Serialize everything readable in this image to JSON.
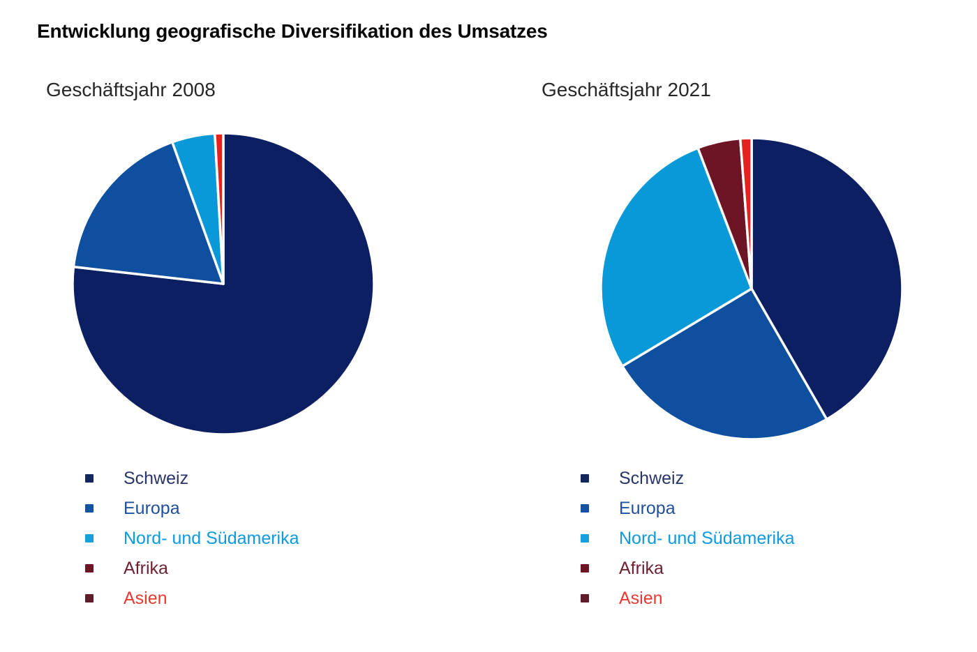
{
  "page_title": "Entwicklung geografische Diversifikation des Umsatzes",
  "chart_data": [
    {
      "type": "pie",
      "title": "Geschäftsjahr 2008",
      "labels": [
        "Schweiz",
        "Europa",
        "Nord- und Südamerika",
        "Afrika",
        "Asien"
      ],
      "values": [
        76.8,
        17.7,
        4.6,
        0,
        0.9
      ],
      "unit": "percent-share-estimated",
      "colors": [
        "#0b1f62",
        "#0f4fa0",
        "#0999d8",
        "#6d1425",
        "#e2241e"
      ],
      "start_angle_deg": 0,
      "direction": "clockwise",
      "slice_gap_color": "#ffffff",
      "legend_position": "bottom"
    },
    {
      "type": "pie",
      "title": "Geschäftsjahr 2021",
      "labels": [
        "Schweiz",
        "Europa",
        "Nord- und Südamerika",
        "Afrika",
        "Asien"
      ],
      "values": [
        41.7,
        24.7,
        27.8,
        4.6,
        1.2
      ],
      "unit": "percent-share-estimated",
      "colors": [
        "#0b1f62",
        "#0f4fa0",
        "#0999d8",
        "#6d1425",
        "#e2241e"
      ],
      "start_angle_deg": 0,
      "direction": "clockwise",
      "slice_gap_color": "#ffffff",
      "legend_position": "bottom"
    }
  ],
  "legend": {
    "items": [
      {
        "label": "Schweiz",
        "marker_color": "#14265e",
        "text_color": "#28356a"
      },
      {
        "label": "Europa",
        "marker_color": "#1553a1",
        "text_color": "#1d509e"
      },
      {
        "label": "Nord- und Südamerika",
        "marker_color": "#18a0dc",
        "text_color": "#0d9ade"
      },
      {
        "label": "Afrika",
        "marker_color": "#6d1425",
        "text_color": "#6f2130"
      },
      {
        "label": "Asien",
        "marker_color": "#5f1d2c",
        "text_color": "#e73a30"
      }
    ]
  }
}
